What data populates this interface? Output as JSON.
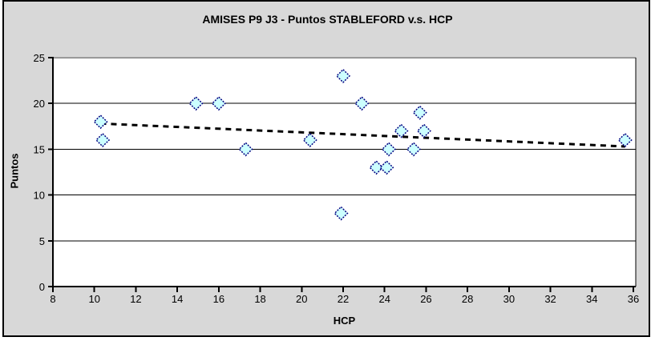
{
  "chart_data": {
    "type": "scatter",
    "title": "AMISES P9 J3 - Puntos STABLEFORD v.s. HCP",
    "xlabel": "HCP",
    "ylabel": "Puntos",
    "xlim": [
      8,
      36
    ],
    "ylim": [
      0,
      25
    ],
    "x_ticks": [
      8,
      10,
      12,
      14,
      16,
      18,
      20,
      22,
      24,
      26,
      28,
      30,
      32,
      34,
      36
    ],
    "y_ticks": [
      0,
      5,
      10,
      15,
      20,
      25
    ],
    "grid": "horizontal-major",
    "legend_position": "none",
    "marker": "diamond",
    "points": [
      {
        "x": 10.3,
        "y": 18
      },
      {
        "x": 10.4,
        "y": 16
      },
      {
        "x": 14.9,
        "y": 20
      },
      {
        "x": 16.0,
        "y": 20
      },
      {
        "x": 17.3,
        "y": 15
      },
      {
        "x": 20.4,
        "y": 16
      },
      {
        "x": 21.9,
        "y": 8
      },
      {
        "x": 22.0,
        "y": 23
      },
      {
        "x": 22.9,
        "y": 20
      },
      {
        "x": 23.6,
        "y": 13
      },
      {
        "x": 24.1,
        "y": 13
      },
      {
        "x": 24.2,
        "y": 15
      },
      {
        "x": 24.8,
        "y": 17
      },
      {
        "x": 25.4,
        "y": 15
      },
      {
        "x": 25.7,
        "y": 19
      },
      {
        "x": 25.9,
        "y": 17
      },
      {
        "x": 35.6,
        "y": 16
      }
    ],
    "trendline": {
      "type": "linear",
      "style": "dashed",
      "x1": 10.3,
      "y1": 17.8,
      "x2": 35.6,
      "y2": 15.3
    }
  },
  "colors": {
    "chart_background": "#D8D8D8",
    "plot_background": "#FFFFFF",
    "plot_border_top": "#808080",
    "plot_border_right": "#000000",
    "axis": "#000000",
    "gridline": "#000000",
    "marker_fill": "#CCFFFF",
    "marker_stroke": "#000080",
    "trendline": "#000000",
    "text": "#000000"
  }
}
